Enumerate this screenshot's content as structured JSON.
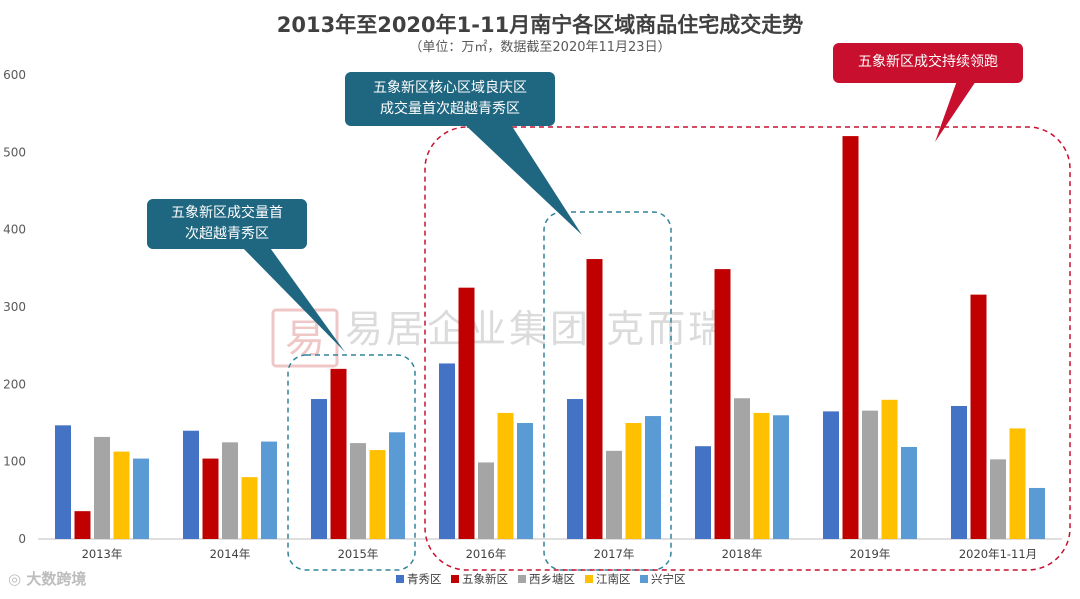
{
  "chart_data": {
    "type": "bar",
    "title": "2013年至2020年1-11月南宁各区域商品住宅成交走势",
    "subtitle": "（单位：万㎡，数据截至2020年11月23日）",
    "categories": [
      "2013年",
      "2014年",
      "2015年",
      "2016年",
      "2017年",
      "2018年",
      "2019年",
      "2020年1-11月"
    ],
    "series": [
      {
        "name": "青秀区",
        "color": "#4472C4",
        "values": [
          147,
          140,
          181,
          227,
          181,
          120,
          165,
          172
        ]
      },
      {
        "name": "五象新区",
        "color": "#C00000",
        "values": [
          36,
          104,
          220,
          325,
          362,
          349,
          521,
          316
        ]
      },
      {
        "name": "西乡塘区",
        "color": "#A5A5A5",
        "values": [
          132,
          125,
          124,
          99,
          114,
          182,
          166,
          103
        ]
      },
      {
        "name": "江南区",
        "color": "#FFC000",
        "values": [
          113,
          80,
          115,
          163,
          150,
          163,
          180,
          143
        ]
      },
      {
        "name": "兴宁区",
        "color": "#5B9BD5",
        "values": [
          104,
          126,
          138,
          150,
          159,
          160,
          119,
          66
        ]
      }
    ],
    "ylim": [
      0,
      600
    ],
    "yticks": [
      0,
      100,
      200,
      300,
      400,
      500,
      600
    ],
    "legend_position": "bottom",
    "grid": false,
    "annotations": [
      {
        "id": "c1",
        "text_lines": [
          "五象新区成交量首",
          "次超越青秀区"
        ],
        "color": "#1F6680",
        "highlight": "2015年"
      },
      {
        "id": "c2",
        "text_lines": [
          "五象新区核心区域良庆区",
          "成交量首次超越青秀区"
        ],
        "color": "#1F6680",
        "highlight": "2017年"
      },
      {
        "id": "c3",
        "text_lines": [
          "五象新区成交持续领跑"
        ],
        "color": "#C8102E",
        "highlight": "2016年-2020年1-11月"
      }
    ]
  },
  "watermark": {
    "center_text": "易居企业集团·克而瑞",
    "seal_text": "易",
    "corner_text": "大数跨境"
  }
}
